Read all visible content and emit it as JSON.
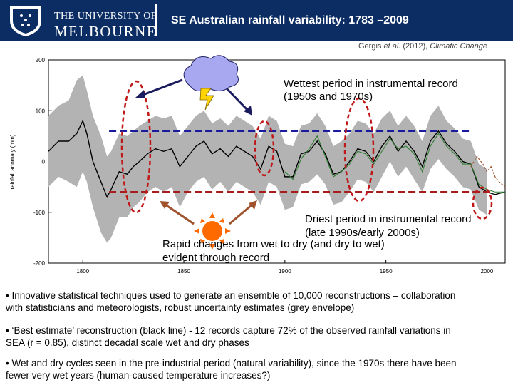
{
  "header": {
    "logo_line1": "THE UNIVERSITY OF",
    "logo_line2": "MELBOURNE",
    "title": "SE Australian rainfall variability: 1783 –2009"
  },
  "citation": {
    "authors": "Gergis ",
    "etal": "et al.",
    "year": " (2012), ",
    "journal": "Climatic Change"
  },
  "annotations": {
    "wettest_line1": "Wettest period in instrumental record",
    "wettest_line2": "(1950s and 1970s)",
    "driest_line1": "Driest period in instrumental record",
    "driest_line2": "(late 1990s/early 2000s)",
    "rapid_line1": "Rapid changes from wet to dry (and dry to wet)",
    "rapid_line2": "evident through record"
  },
  "bullets": [
    {
      "line1": "• Innovative statistical techniques used to generate an ensemble of 10,000 reconstructions – collaboration",
      "line2": "with statisticians and meteorologists, robust uncertainty estimates (grey envelope)"
    },
    {
      "line1": "• ‘Best estimate’ reconstruction (black line) - 12 records capture 72% of the observed rainfall variations in",
      "line2": "SEA (r = 0.85), distinct decadal scale wet and dry phases"
    },
    {
      "line1": "• Wet and dry cycles seen in the pre-industrial period (natural variability), since the 1970s there have been",
      "line2": "fewer very wet years (human-caused temperature increases?)"
    }
  ],
  "colors": {
    "header_bg": "#0b2d63",
    "envelope": "#b3b3b3",
    "reconstruction": "#000000",
    "instrumental": "#2e7d32",
    "recent": "#a0522d",
    "wet_line": "#1a1a9c",
    "dry_line": "#a51d1d",
    "ellipse": "#c01818",
    "sun": "#ff6a00",
    "cloud": "#a8a8f0",
    "lightning": "#ffd400"
  },
  "chart_data": {
    "type": "line",
    "ylabel": "rainfall anomaly (mm)",
    "xlim": [
      1783,
      2009
    ],
    "ylim": [
      -200,
      200
    ],
    "x_ticks": [
      1800,
      1850,
      1900,
      1950,
      2000
    ],
    "y_ticks": [
      -200,
      -100,
      0,
      100,
      200
    ],
    "x_tick_labels": [
      "1800",
      "1850",
      "1900",
      "1950",
      "2000"
    ],
    "y_tick_labels": [
      "-200",
      "-100",
      "0",
      "100",
      "200"
    ],
    "wet_threshold": 60,
    "dry_threshold": -60,
    "series": [
      {
        "role": "reconstruction",
        "x": [
          1783,
          1788,
          1793,
          1797,
          1800,
          1802,
          1805,
          1809,
          1812,
          1814,
          1818,
          1822,
          1825,
          1828,
          1832,
          1836,
          1840,
          1844,
          1848,
          1852,
          1856,
          1860,
          1864,
          1868,
          1872,
          1876,
          1880,
          1884,
          1888,
          1892,
          1896,
          1900,
          1904,
          1908,
          1912,
          1916,
          1920,
          1924,
          1928,
          1932,
          1936,
          1940,
          1944,
          1948,
          1952,
          1956,
          1960,
          1964,
          1968,
          1972,
          1976,
          1980,
          1984,
          1988,
          1992,
          1996,
          2000,
          2004,
          2009
        ],
        "y": [
          20,
          40,
          40,
          55,
          80,
          55,
          0,
          -40,
          -70,
          -55,
          -20,
          -25,
          -10,
          0,
          15,
          25,
          20,
          25,
          -10,
          10,
          30,
          40,
          15,
          25,
          10,
          30,
          20,
          10,
          -15,
          30,
          20,
          -30,
          -30,
          15,
          20,
          40,
          15,
          -25,
          -20,
          0,
          25,
          20,
          0,
          30,
          50,
          20,
          40,
          20,
          -10,
          40,
          60,
          35,
          20,
          0,
          -5,
          -50,
          -60,
          -65,
          -60
        ]
      },
      {
        "role": "instrumental",
        "x": [
          1900,
          1904,
          1908,
          1912,
          1916,
          1920,
          1924,
          1928,
          1932,
          1936,
          1940,
          1944,
          1948,
          1952,
          1956,
          1960,
          1964,
          1968,
          1972,
          1976,
          1980,
          1984,
          1988,
          1992,
          1996,
          2000,
          2004,
          2009
        ],
        "y": [
          -20,
          -35,
          5,
          25,
          50,
          10,
          -30,
          -20,
          -5,
          20,
          15,
          -5,
          20,
          45,
          25,
          30,
          15,
          -20,
          30,
          55,
          30,
          15,
          -5,
          -5,
          -45,
          -55,
          -60,
          -60
        ]
      },
      {
        "role": "recent",
        "x": [
          1992,
          1995,
          1998,
          2000,
          2002,
          2004,
          2006,
          2009
        ],
        "y": [
          -10,
          10,
          -5,
          -20,
          -10,
          -30,
          -40,
          -50
        ]
      }
    ],
    "envelope": {
      "x": [
        1783,
        1788,
        1793,
        1797,
        1800,
        1802,
        1805,
        1809,
        1812,
        1814,
        1818,
        1822,
        1825,
        1828,
        1832,
        1836,
        1840,
        1844,
        1848,
        1852,
        1856,
        1860,
        1864,
        1868,
        1872,
        1876,
        1880,
        1884,
        1888,
        1892,
        1896,
        1900,
        1904,
        1908,
        1912,
        1916,
        1920,
        1924,
        1928,
        1932,
        1936,
        1940,
        1944,
        1948,
        1952,
        1956,
        1960,
        1964,
        1968,
        1972,
        1976,
        1980,
        1984,
        1988,
        1992,
        1996,
        2000
      ],
      "upper": [
        90,
        110,
        120,
        160,
        170,
        140,
        90,
        50,
        10,
        20,
        55,
        50,
        60,
        70,
        80,
        90,
        85,
        90,
        50,
        70,
        90,
        100,
        75,
        85,
        70,
        90,
        80,
        70,
        45,
        90,
        80,
        35,
        30,
        70,
        75,
        95,
        70,
        30,
        40,
        55,
        80,
        75,
        55,
        85,
        100,
        70,
        90,
        70,
        40,
        90,
        110,
        80,
        65,
        45,
        40,
        -5,
        -15
      ],
      "lower": [
        -50,
        -30,
        -40,
        -50,
        -20,
        -40,
        -90,
        -140,
        -160,
        -150,
        -110,
        -110,
        -90,
        -80,
        -60,
        -50,
        -60,
        -50,
        -90,
        -60,
        -40,
        -30,
        -55,
        -40,
        -60,
        -40,
        -50,
        -60,
        -85,
        -40,
        -50,
        -95,
        -90,
        -45,
        -40,
        -25,
        -45,
        -85,
        -80,
        -60,
        -35,
        -40,
        -60,
        -30,
        0,
        -30,
        -10,
        -35,
        -60,
        -15,
        5,
        -15,
        -30,
        -50,
        -55,
        -95,
        -105
      ]
    }
  }
}
